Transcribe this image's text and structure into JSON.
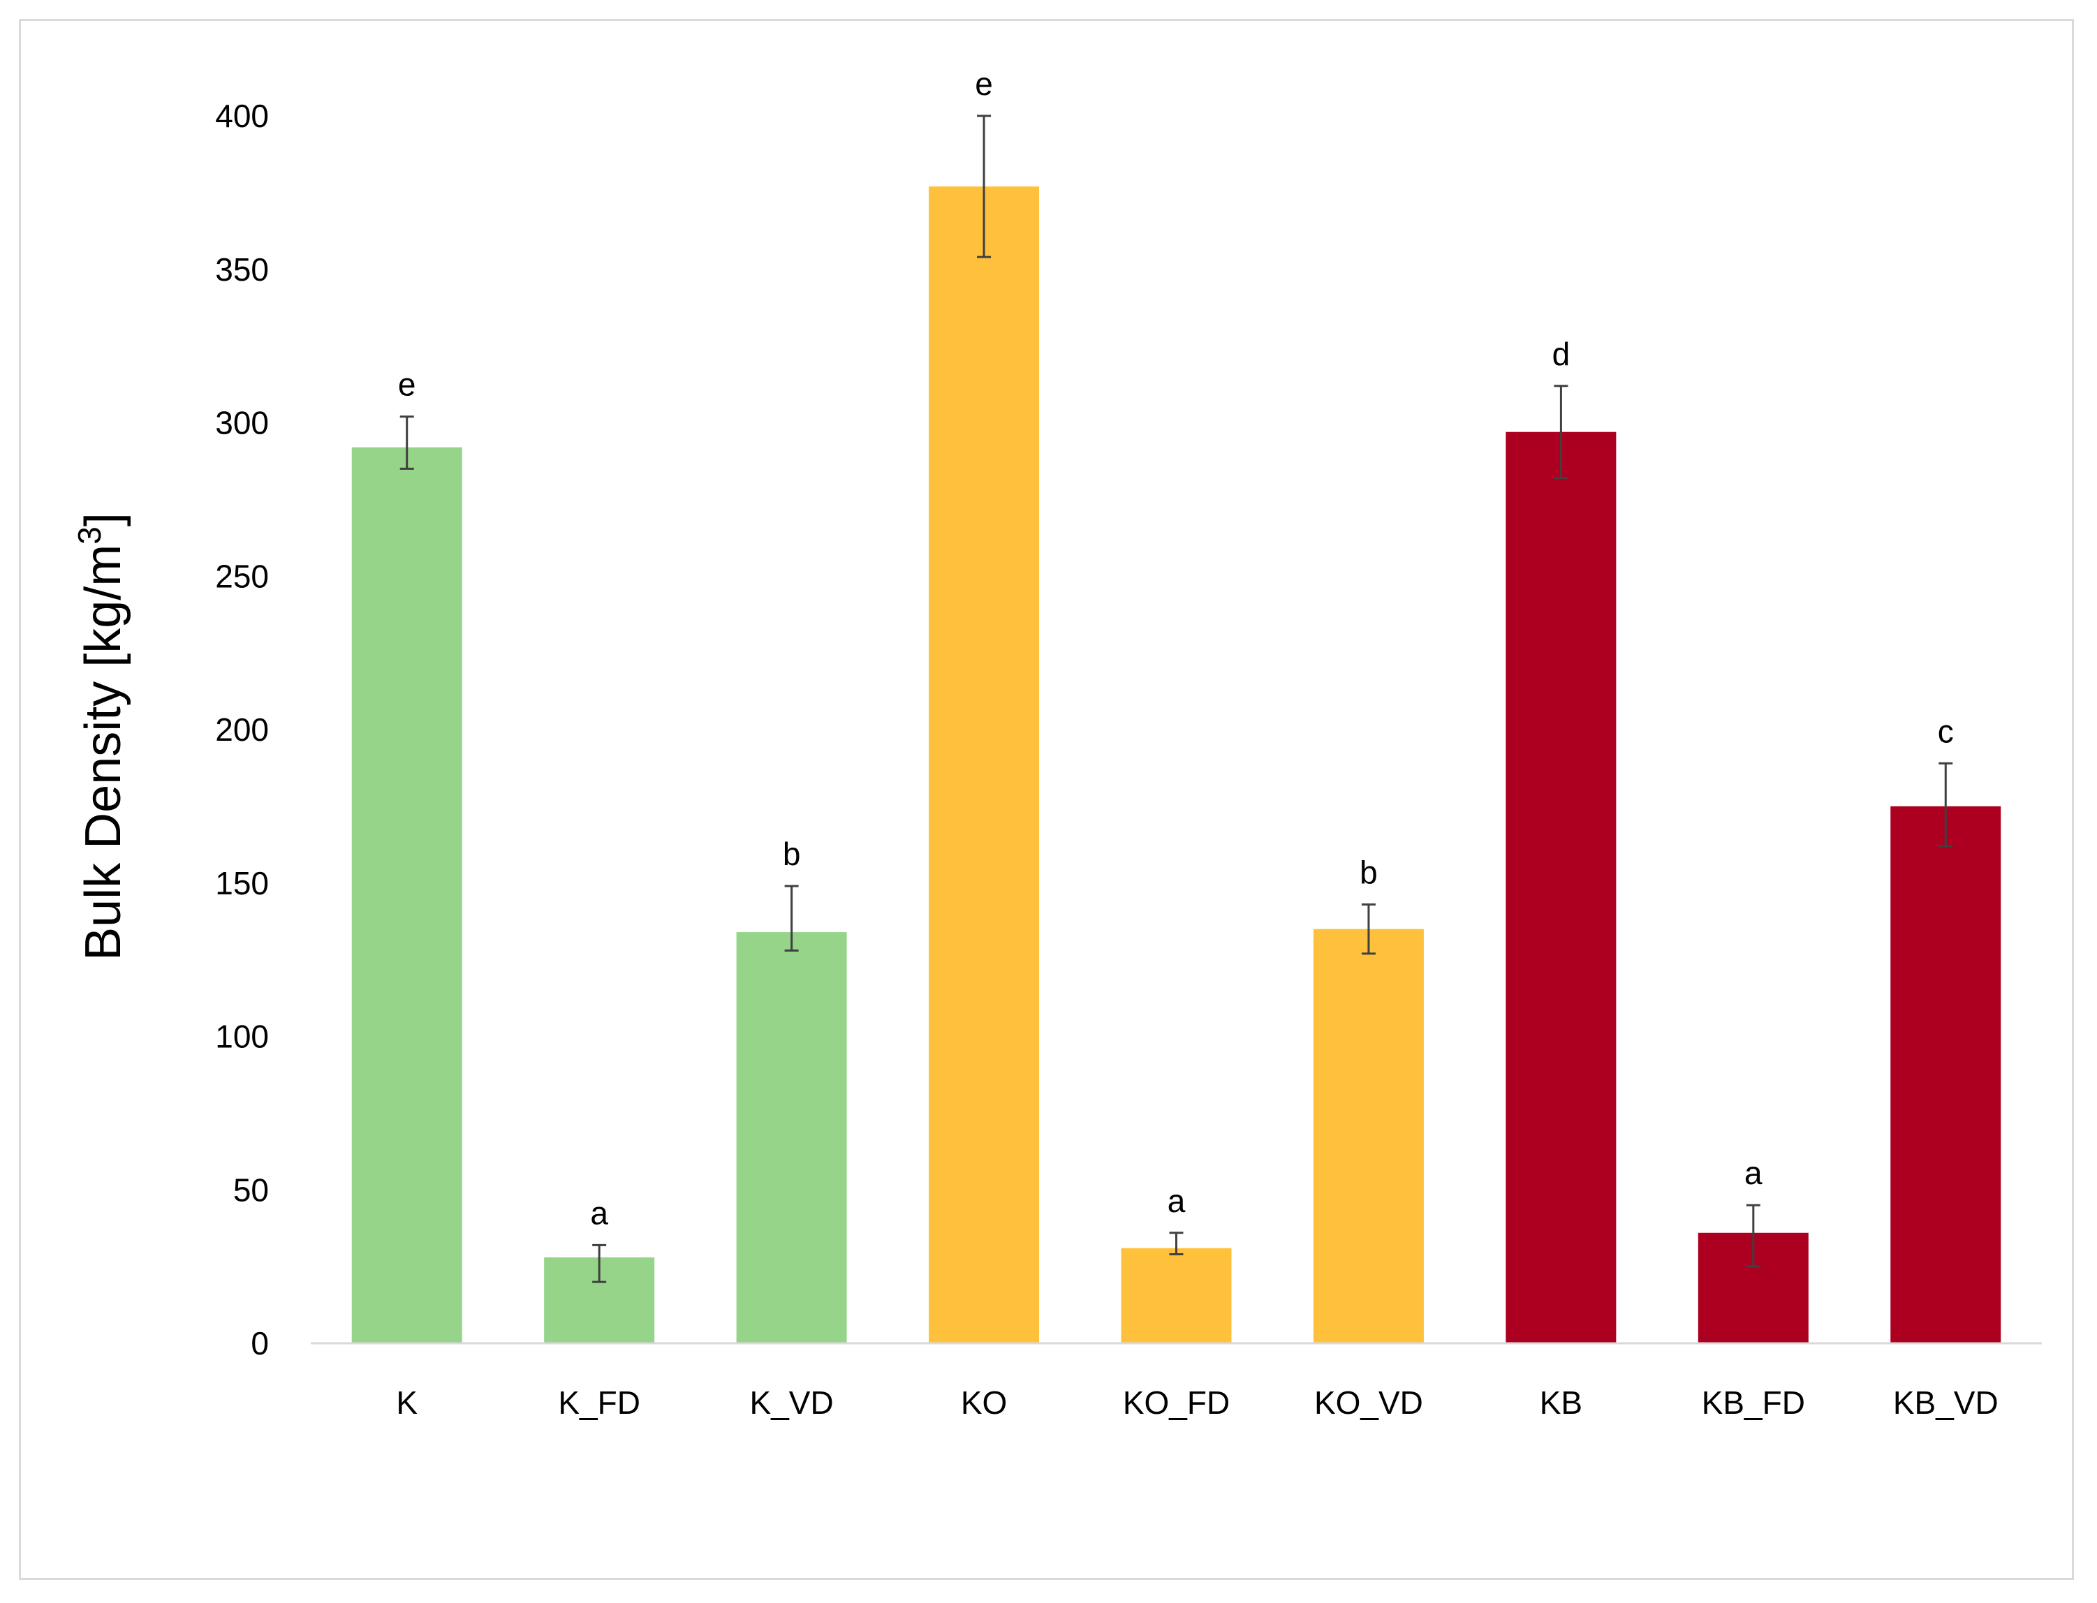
{
  "chart_data": {
    "type": "bar",
    "title": "",
    "xlabel": "",
    "ylabel": {
      "main": "Bulk Density [kg/m",
      "superscript": "3",
      "close": "]"
    },
    "ylim": [
      0,
      400
    ],
    "yticks": [
      0,
      50,
      100,
      150,
      200,
      250,
      300,
      350,
      400
    ],
    "grid": false,
    "legend": "none",
    "categories": [
      "K",
      "K_FD",
      "K_VD",
      "KO",
      "KO_FD",
      "KO_VD",
      "KB",
      "KB_FD",
      "KB_VD"
    ],
    "values": [
      292,
      28,
      134,
      377,
      31,
      135,
      297,
      36,
      175
    ],
    "error_low": [
      285,
      20,
      128,
      354,
      29,
      127,
      282,
      25,
      162
    ],
    "error_high": [
      302,
      32,
      149,
      400,
      36,
      143,
      312,
      45,
      189
    ],
    "significance_letters": [
      "e",
      "a",
      "b",
      "e",
      "a",
      "b",
      "d",
      "a",
      "c"
    ],
    "colors": [
      "#96d48a",
      "#96d48a",
      "#96d48a",
      "#ffc13b",
      "#ffc13b",
      "#ffc13b",
      "#ad0020",
      "#ad0020",
      "#ad0020"
    ],
    "axis_color": "#d9d9d9",
    "errorbar_color": "#404040"
  }
}
